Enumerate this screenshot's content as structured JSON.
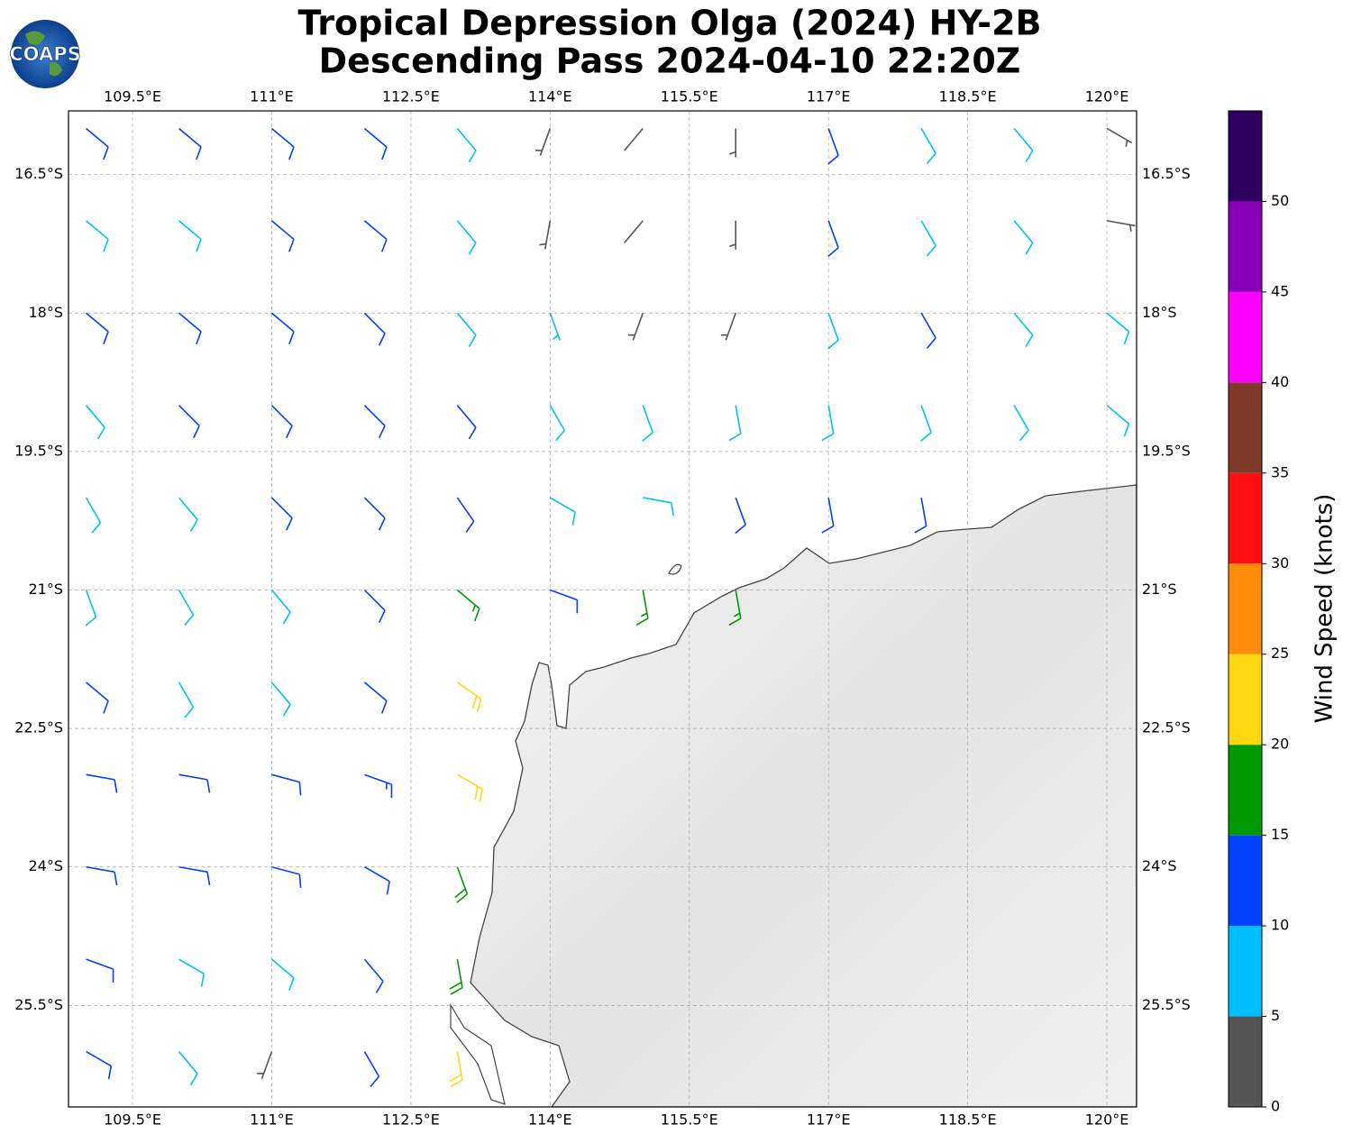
{
  "chart_data": {
    "type": "barbs",
    "title": "Tropical Depression Olga (2024) HY-2B",
    "subtitle": "Descending Pass 2024-04-10 22:20Z",
    "logo": "COAPS",
    "xlim": [
      108.81,
      120.32
    ],
    "ylim": [
      -26.6,
      -15.81
    ],
    "xticks": [
      {
        "value": 109.5,
        "label": "109.5°E"
      },
      {
        "value": 111,
        "label": "111°E"
      },
      {
        "value": 112.5,
        "label": "112.5°E"
      },
      {
        "value": 114,
        "label": "114°E"
      },
      {
        "value": 115.5,
        "label": "115.5°E"
      },
      {
        "value": 117,
        "label": "117°E"
      },
      {
        "value": 118.5,
        "label": "118.5°E"
      },
      {
        "value": 120,
        "label": "120°E"
      }
    ],
    "yticks": [
      {
        "value": -16.5,
        "label": "16.5°S"
      },
      {
        "value": -18,
        "label": "18°S"
      },
      {
        "value": -19.5,
        "label": "19.5°S"
      },
      {
        "value": -21,
        "label": "21°S"
      },
      {
        "value": -22.5,
        "label": "22.5°S"
      },
      {
        "value": -24,
        "label": "24°S"
      },
      {
        "value": -25.5,
        "label": "25.5°S"
      }
    ],
    "grid": true,
    "barbs": {
      "lon": [
        109,
        110,
        111,
        112,
        113,
        114,
        115,
        116,
        117,
        118,
        119,
        120,
        109,
        110,
        111,
        112,
        113,
        114,
        115,
        116,
        117,
        118,
        119,
        120,
        109,
        110,
        111,
        112,
        113,
        114,
        115,
        116,
        117,
        118,
        119,
        120,
        109,
        110,
        111,
        112,
        113,
        114,
        115,
        116,
        117,
        118,
        119,
        120,
        109,
        110,
        111,
        112,
        113,
        114,
        115,
        116,
        117,
        118,
        109,
        110,
        111,
        112,
        113,
        114,
        115,
        116,
        109,
        110,
        111,
        112,
        113,
        109,
        110,
        111,
        112,
        113,
        109,
        110,
        111,
        112,
        113,
        109,
        110,
        111,
        112,
        113,
        109,
        110,
        111,
        112,
        113
      ],
      "lat": [
        -16,
        -16,
        -16,
        -16,
        -16,
        -16,
        -16,
        -16,
        -16,
        -16,
        -16,
        -16,
        -17,
        -17,
        -17,
        -17,
        -17,
        -17,
        -17,
        -17,
        -17,
        -17,
        -17,
        -17,
        -18,
        -18,
        -18,
        -18,
        -18,
        -18,
        -18,
        -18,
        -18,
        -18,
        -18,
        -18,
        -19,
        -19,
        -19,
        -19,
        -19,
        -19,
        -19,
        -19,
        -19,
        -19,
        -19,
        -19,
        -20,
        -20,
        -20,
        -20,
        -20,
        -20,
        -20,
        -20,
        -20,
        -20,
        -21,
        -21,
        -21,
        -21,
        -21,
        -21,
        -21,
        -21,
        -22,
        -22,
        -22,
        -22,
        -22,
        -23,
        -23,
        -23,
        -23,
        -23,
        -24,
        -24,
        -24,
        -24,
        -24,
        -25,
        -25,
        -25,
        -25,
        -25,
        -26,
        -26,
        -26,
        -26,
        -26
      ],
      "speed": [
        12,
        12,
        12,
        10,
        8,
        4,
        2,
        4,
        12,
        8,
        8,
        4,
        8,
        8,
        12,
        12,
        8,
        4,
        2,
        4,
        12,
        8,
        8,
        3,
        12,
        12,
        12,
        12,
        8,
        6,
        4,
        4,
        8,
        12,
        8,
        8,
        8,
        12,
        12,
        12,
        12,
        8,
        8,
        8,
        8,
        8,
        8,
        8,
        8,
        8,
        12,
        12,
        12,
        8,
        8,
        12,
        12,
        12,
        8,
        8,
        8,
        12,
        17,
        12,
        17,
        17,
        12,
        8,
        8,
        12,
        22,
        12,
        12,
        12,
        14,
        22,
        12,
        12,
        12,
        12,
        18,
        12,
        8,
        8,
        12,
        18,
        12,
        8,
        3,
        12,
        22
      ],
      "direction": [
        130,
        130,
        130,
        130,
        140,
        200,
        220,
        180,
        160,
        150,
        140,
        120,
        130,
        130,
        130,
        130,
        140,
        190,
        220,
        180,
        160,
        150,
        140,
        100,
        130,
        130,
        130,
        135,
        140,
        160,
        200,
        200,
        160,
        150,
        140,
        130,
        140,
        135,
        135,
        135,
        140,
        150,
        160,
        170,
        170,
        160,
        150,
        130,
        150,
        140,
        135,
        135,
        145,
        120,
        100,
        160,
        170,
        170,
        160,
        150,
        140,
        135,
        130,
        110,
        170,
        170,
        130,
        150,
        140,
        130,
        125,
        100,
        100,
        105,
        110,
        120,
        100,
        100,
        105,
        120,
        160,
        110,
        120,
        130,
        140,
        170,
        120,
        140,
        200,
        150,
        170
      ]
    },
    "colorbar": {
      "label": "Wind Speed (knots)",
      "lim": [
        0,
        55
      ],
      "bounds": [
        0,
        5,
        10,
        15,
        20,
        25,
        30,
        35,
        40,
        45,
        50,
        55
      ],
      "colors": [
        "#555555",
        "#00bfff",
        "#0040ff",
        "#009900",
        "#ffd712",
        "#ff8c0a",
        "#ff1010",
        "#803a2a",
        "#ff00ff",
        "#8a00b8",
        "#2e0060"
      ],
      "ticks": [
        0,
        5,
        10,
        15,
        20,
        25,
        30,
        35,
        40,
        45,
        50
      ]
    }
  }
}
